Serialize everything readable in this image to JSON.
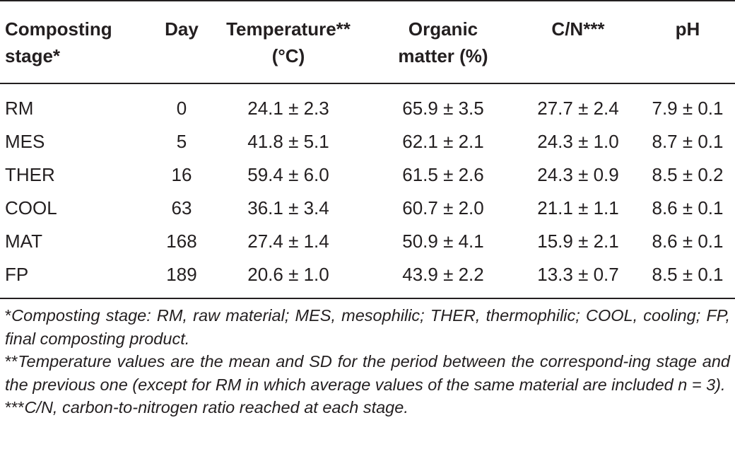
{
  "headers": [
    [
      "Composting",
      "stage*"
    ],
    [
      "Day",
      ""
    ],
    [
      "Temperature**",
      "(°C)"
    ],
    [
      "Organic",
      "matter (%)"
    ],
    [
      "C/N***",
      ""
    ],
    [
      "pH",
      ""
    ]
  ],
  "rows": [
    [
      "RM",
      "0",
      "24.1 ± 2.3",
      "65.9 ± 3.5",
      "27.7 ± 2.4",
      "7.9 ± 0.1"
    ],
    [
      "MES",
      "5",
      "41.8 ± 5.1",
      "62.1 ± 2.1",
      "24.3 ± 1.0",
      "8.7 ± 0.1"
    ],
    [
      "THER",
      "16",
      "59.4 ± 6.0",
      "61.5 ± 2.6",
      "24.3 ± 0.9",
      "8.5 ± 0.2"
    ],
    [
      "COOL",
      "63",
      "36.1 ± 3.4",
      "60.7 ± 2.0",
      "21.1 ± 1.1",
      "8.6 ± 0.1"
    ],
    [
      "MAT",
      "168",
      "27.4 ± 1.4",
      "50.9 ± 4.1",
      "15.9 ± 2.1",
      "8.6 ± 0.1"
    ],
    [
      "FP",
      "189",
      "20.6 ± 1.0",
      "43.9 ± 2.2",
      "13.3 ± 0.7",
      "8.5 ± 0.1"
    ]
  ],
  "footnotes": [
    {
      "mark": "*",
      "text": "Composting stage: RM, raw material; MES, mesophilic; THER, thermophilic; COOL, cooling; FP, final composting product."
    },
    {
      "mark": "**",
      "text": "Temperature values are the mean and SD for the period between the correspond-ing stage and the previous one (except for RM in which average values of the same material are included n =  3)."
    },
    {
      "mark": "***",
      "text": "C/N, carbon-to-nitrogen ratio reached at each stage."
    }
  ]
}
